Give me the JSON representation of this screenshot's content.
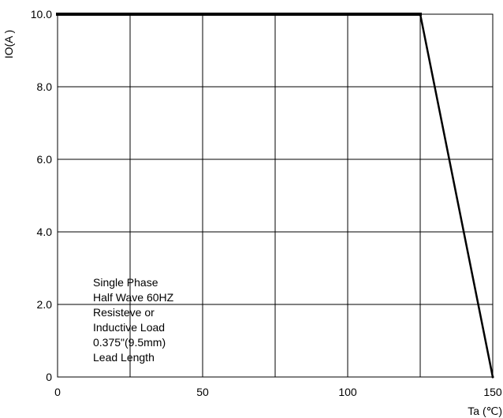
{
  "chart_data": {
    "type": "line",
    "title": "",
    "xlabel": "Ta (℃)",
    "ylabel": "IO(A )",
    "xlim": [
      0,
      150
    ],
    "ylim": [
      0,
      10
    ],
    "x_ticks": [
      {
        "value": 0,
        "label": "0"
      },
      {
        "value": 50,
        "label": "50"
      },
      {
        "value": 100,
        "label": "100"
      },
      {
        "value": 150,
        "label": "150"
      }
    ],
    "y_ticks": [
      {
        "value": 0,
        "label": "0"
      },
      {
        "value": 2,
        "label": "2.0"
      },
      {
        "value": 4,
        "label": "4.0"
      },
      {
        "value": 6,
        "label": "6.0"
      },
      {
        "value": 8,
        "label": "8.0"
      },
      {
        "value": 10,
        "label": "10.0"
      }
    ],
    "grid": true,
    "grid_x_step": 25,
    "grid_y_step": 2,
    "series": [
      {
        "x": [
          0,
          125,
          150
        ],
        "y": [
          10,
          10,
          0
        ]
      }
    ],
    "annotation": {
      "lines": [
        "Single Phase",
        "Half Wave 60HZ",
        "Resisteve or",
        "Inductive Load",
        "0.375\"(9.5mm)",
        "Lead Length"
      ]
    }
  }
}
